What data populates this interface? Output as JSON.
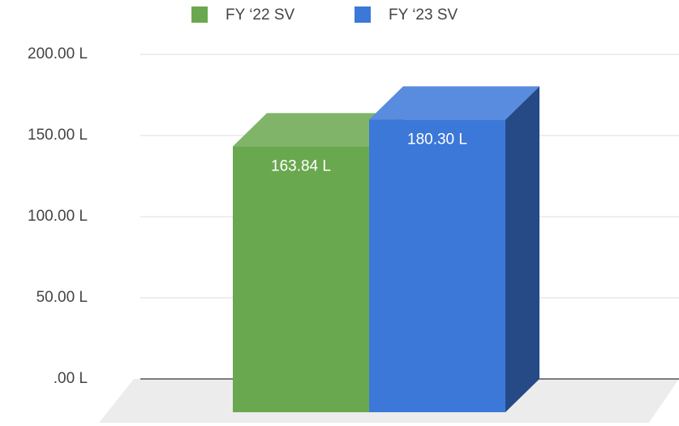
{
  "chart_data": {
    "type": "bar",
    "categories": [
      null
    ],
    "series": [
      {
        "name": "FY ‘22 SV",
        "color": "#6aa84f",
        "values": [
          163.84
        ],
        "value_labels": [
          "163.84 L"
        ]
      },
      {
        "name": "FY ‘23 SV",
        "color": "#3c78d8",
        "values": [
          180.3
        ],
        "value_labels": [
          "180.30 L"
        ]
      }
    ],
    "ylim": [
      0,
      200
    ],
    "yticks": [
      {
        "value": 0,
        "label": ".00 L"
      },
      {
        "value": 50,
        "label": "50.00 L"
      },
      {
        "value": 100,
        "label": "100.00 L"
      },
      {
        "value": 150,
        "label": "150.00 L"
      },
      {
        "value": 200,
        "label": "200.00 L"
      }
    ],
    "grid": true,
    "legend": "top",
    "three_d": true
  }
}
